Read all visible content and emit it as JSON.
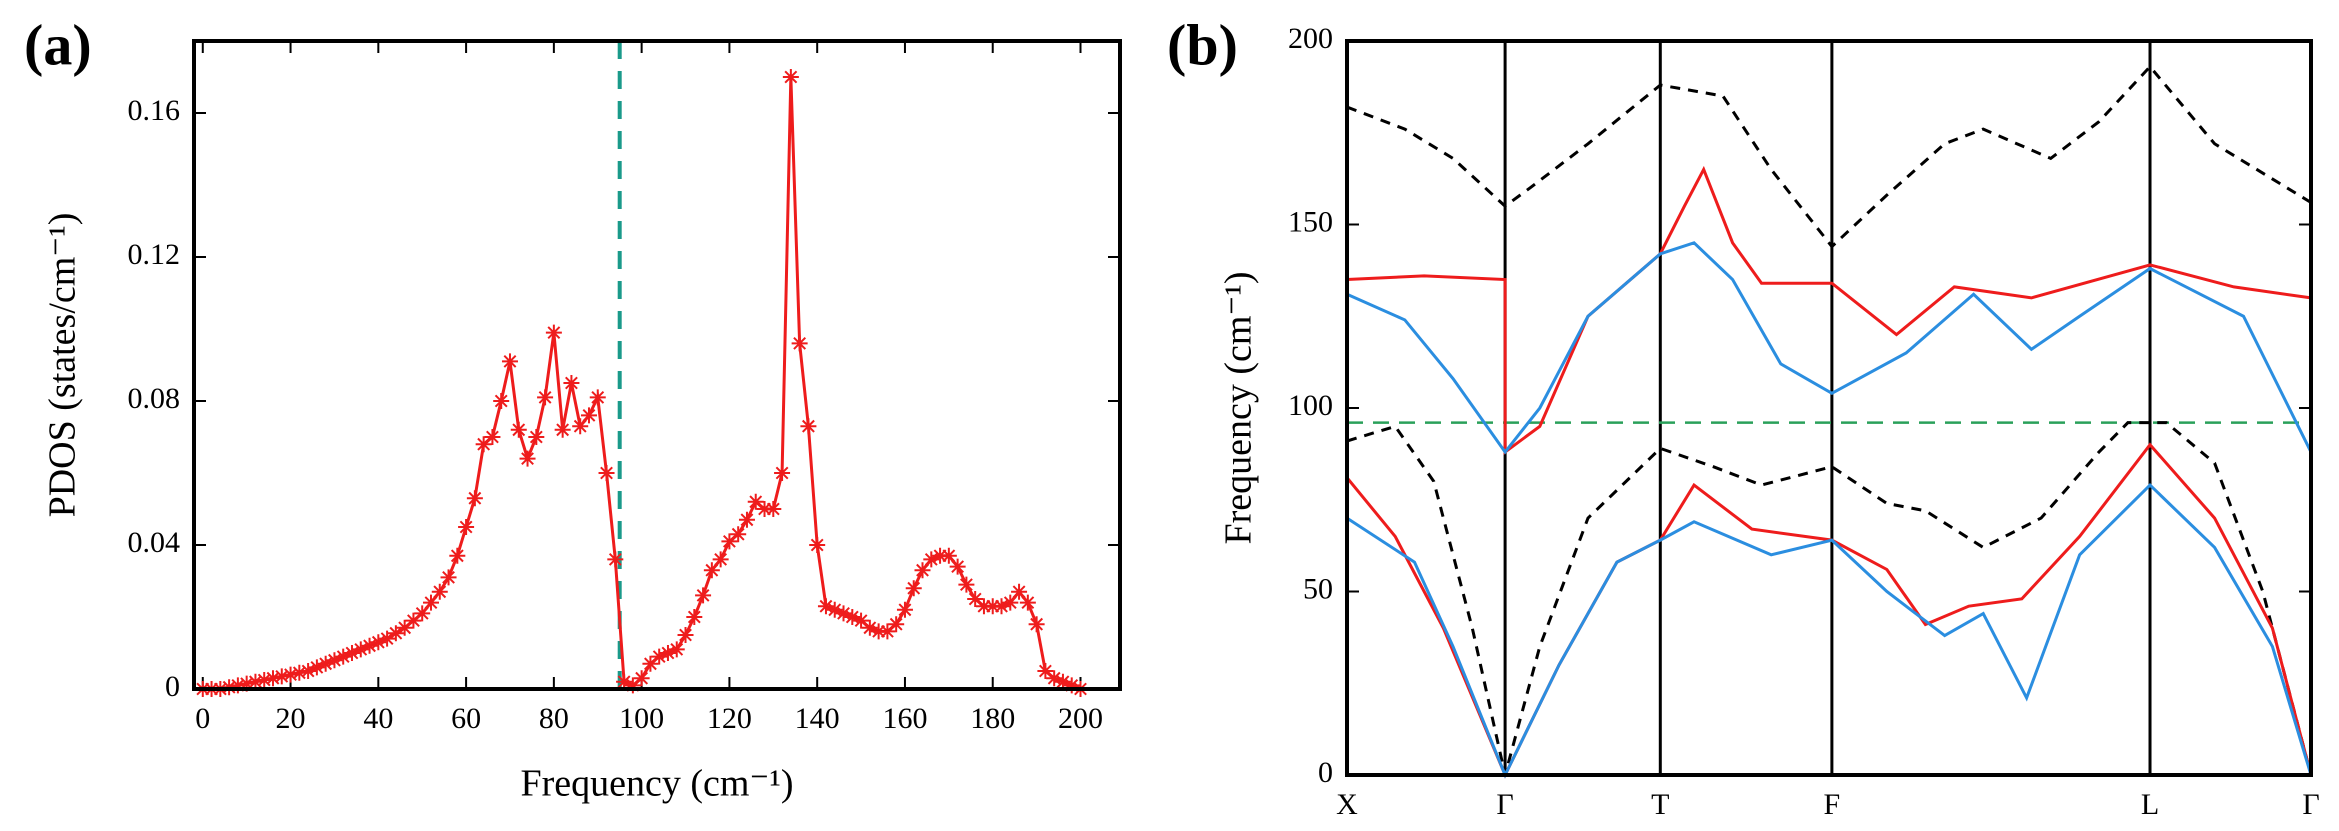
{
  "chart_data": [
    {
      "type": "line",
      "label": "(a)",
      "xlabel": "Frequency (cm⁻¹)",
      "ylabel": "PDOS (states/cm⁻¹)",
      "xlim": [
        -2,
        209
      ],
      "ylim": [
        0,
        0.18
      ],
      "xticks": [
        0,
        20,
        40,
        60,
        80,
        100,
        120,
        140,
        160,
        180,
        200
      ],
      "yticks": [
        0,
        0.04,
        0.08,
        0.12,
        0.16
      ],
      "vline": 95,
      "vline_color": "#1a9a8a",
      "marker": "asterisk",
      "series": [
        {
          "color": "#ee1c1c",
          "x": [
            0,
            2,
            4,
            6,
            8,
            10,
            12,
            14,
            16,
            18,
            20,
            22,
            24,
            26,
            28,
            30,
            32,
            34,
            36,
            38,
            40,
            42,
            44,
            46,
            48,
            50,
            52,
            54,
            56,
            58,
            60,
            62,
            64,
            66,
            68,
            70,
            72,
            74,
            76,
            78,
            80,
            82,
            84,
            86,
            88,
            90,
            92,
            94,
            96,
            98,
            100,
            102,
            104,
            106,
            108,
            110,
            112,
            114,
            116,
            118,
            120,
            122,
            124,
            126,
            128,
            130,
            132,
            134,
            136,
            138,
            140,
            142,
            144,
            146,
            148,
            150,
            152,
            154,
            156,
            158,
            160,
            162,
            164,
            166,
            168,
            170,
            172,
            174,
            176,
            178,
            180,
            182,
            184,
            186,
            188,
            190,
            192,
            194,
            196,
            198,
            200
          ],
          "values": [
            0,
            0,
            0,
            0.0005,
            0.001,
            0.0015,
            0.002,
            0.0025,
            0.003,
            0.0035,
            0.004,
            0.0045,
            0.005,
            0.006,
            0.007,
            0.008,
            0.009,
            0.01,
            0.011,
            0.012,
            0.013,
            0.014,
            0.0155,
            0.017,
            0.019,
            0.021,
            0.024,
            0.027,
            0.031,
            0.037,
            0.045,
            0.053,
            0.068,
            0.07,
            0.08,
            0.091,
            0.072,
            0.064,
            0.07,
            0.081,
            0.099,
            0.072,
            0.085,
            0.073,
            0.076,
            0.081,
            0.06,
            0.036,
            0.002,
            0.001,
            0.003,
            0.007,
            0.009,
            0.01,
            0.011,
            0.015,
            0.02,
            0.026,
            0.033,
            0.036,
            0.041,
            0.043,
            0.047,
            0.052,
            0.05,
            0.05,
            0.06,
            0.17,
            0.096,
            0.073,
            0.04,
            0.023,
            0.022,
            0.021,
            0.02,
            0.019,
            0.017,
            0.016,
            0.016,
            0.018,
            0.022,
            0.028,
            0.033,
            0.036,
            0.037,
            0.037,
            0.034,
            0.029,
            0.025,
            0.023,
            0.023,
            0.023,
            0.024,
            0.027,
            0.024,
            0.018,
            0.005,
            0.003,
            0.002,
            0.001,
            0
          ]
        }
      ]
    },
    {
      "type": "line",
      "label": "(b)",
      "ylabel": "Frequency (cm⁻¹)",
      "xlim": [
        0,
        1
      ],
      "ylim": [
        0,
        200
      ],
      "xticks": [
        {
          "value": 0,
          "label": "X"
        },
        {
          "value": 0.164,
          "label": "Γ"
        },
        {
          "value": 0.325,
          "label": "T"
        },
        {
          "value": 0.503,
          "label": "F"
        },
        {
          "value": 0.833,
          "label": "L"
        },
        {
          "value": 1,
          "label": "Γ"
        }
      ],
      "yticks": [
        0,
        50,
        100,
        150,
        200
      ],
      "grid": true,
      "hline": 96,
      "hline_color": "#2aa05a",
      "series": [
        {
          "color": "#000000",
          "dash": true,
          "x": [
            0,
            0.06,
            0.11,
            0.164,
            0.19,
            0.25,
            0.325,
            0.39,
            0.44,
            0.503,
            0.56,
            0.62,
            0.66,
            0.73,
            0.78,
            0.833,
            0.9,
            1.0
          ],
          "values": [
            182,
            176,
            168,
            155,
            160,
            172,
            188,
            185,
            165,
            144,
            158,
            172,
            176,
            168,
            178,
            193,
            172,
            156
          ]
        },
        {
          "color": "#000000",
          "dash": true,
          "x": [
            0,
            0.05,
            0.09,
            0.13,
            0.164,
            0.2,
            0.25,
            0.325,
            0.38,
            0.43,
            0.503,
            0.56,
            0.6,
            0.66,
            0.72,
            0.78,
            0.81,
            0.85,
            0.9,
            0.95,
            1.0
          ],
          "values": [
            91,
            95,
            80,
            40,
            0,
            35,
            70,
            89,
            84,
            79,
            84,
            74,
            72,
            62,
            70,
            88,
            96,
            96,
            85,
            50,
            0
          ]
        },
        {
          "color": "#ee1c1c",
          "x": [
            0,
            0.08,
            0.164,
            0.164,
            0.2,
            0.25,
            0.325,
            0.35,
            0.37,
            0.4,
            0.43,
            0.503,
            0.57,
            0.63,
            0.71,
            0.833,
            0.92,
            1.0
          ],
          "values": [
            135,
            136,
            135,
            88,
            95,
            125,
            142,
            155,
            165,
            145,
            134,
            134,
            120,
            133,
            130,
            139,
            133,
            130
          ]
        },
        {
          "color": "#2b8ee0",
          "x": [
            0,
            0.06,
            0.11,
            0.164,
            0.2,
            0.25,
            0.325,
            0.36,
            0.4,
            0.45,
            0.503,
            0.58,
            0.65,
            0.71,
            0.76,
            0.833,
            0.93,
            1.0
          ],
          "values": [
            131,
            124,
            108,
            88,
            100,
            125,
            142,
            145,
            135,
            112,
            104,
            115,
            131,
            116,
            125,
            138,
            125,
            88
          ]
        },
        {
          "color": "#ee1c1c",
          "x": [
            0,
            0.05,
            0.1,
            0.164,
            0.22,
            0.28,
            0.325,
            0.36,
            0.42,
            0.503,
            0.56,
            0.6,
            0.645,
            0.7,
            0.76,
            0.833,
            0.9,
            0.96,
            1.0
          ],
          "values": [
            81,
            65,
            40,
            0,
            30,
            58,
            64,
            79,
            67,
            64,
            56,
            41,
            46,
            48,
            65,
            90,
            70,
            40,
            0
          ]
        },
        {
          "color": "#2b8ee0",
          "x": [
            0,
            0.07,
            0.11,
            0.164,
            0.22,
            0.28,
            0.325,
            0.36,
            0.44,
            0.503,
            0.56,
            0.62,
            0.66,
            0.705,
            0.76,
            0.833,
            0.9,
            0.96,
            1.0
          ],
          "values": [
            70,
            58,
            35,
            0,
            30,
            58,
            64,
            69,
            60,
            64,
            50,
            38,
            44,
            21,
            60,
            79,
            62,
            35,
            0
          ]
        }
      ]
    }
  ]
}
